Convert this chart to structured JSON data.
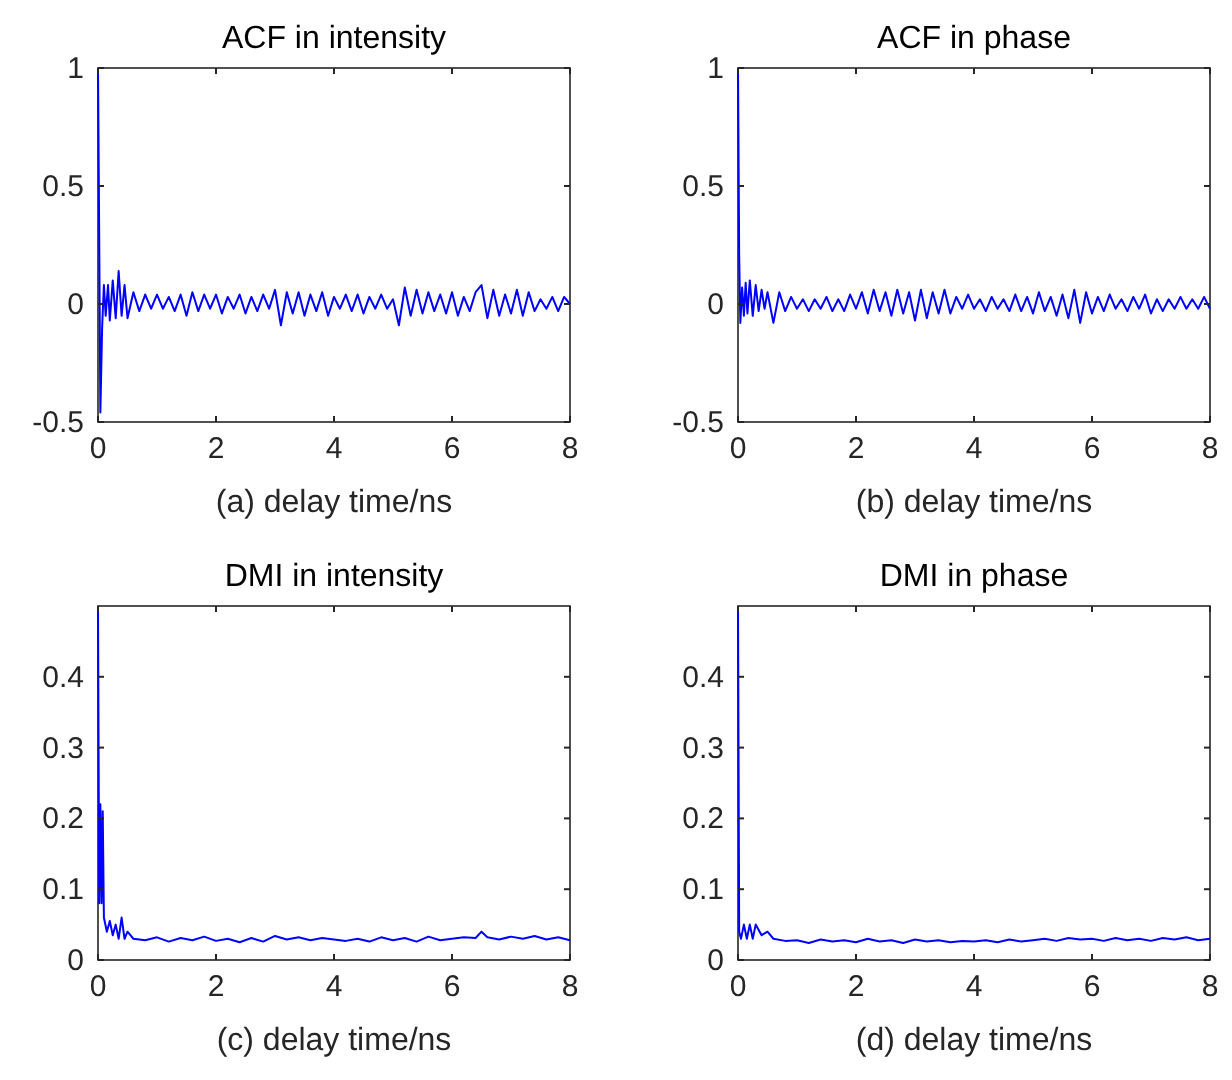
{
  "chart_data": [
    {
      "type": "line",
      "title": "ACF in intensity",
      "xlabel": "(a) delay time/ns",
      "xlim": [
        0,
        8
      ],
      "xticks": [
        0,
        2,
        4,
        6,
        8
      ],
      "ylim": [
        -0.5,
        1
      ],
      "yticks": [
        -0.5,
        0,
        0.5,
        1
      ],
      "grid": false,
      "series": [
        {
          "color": "#0000ff",
          "x": [
            0,
            0.02,
            0.04,
            0.07,
            0.1,
            0.13,
            0.17,
            0.2,
            0.25,
            0.3,
            0.35,
            0.4,
            0.45,
            0.5,
            0.6,
            0.7,
            0.8,
            0.9,
            1.0,
            1.1,
            1.2,
            1.3,
            1.4,
            1.5,
            1.6,
            1.7,
            1.8,
            1.9,
            2.0,
            2.1,
            2.2,
            2.3,
            2.4,
            2.5,
            2.6,
            2.7,
            2.8,
            2.9,
            3.0,
            3.1,
            3.2,
            3.3,
            3.4,
            3.5,
            3.6,
            3.7,
            3.8,
            3.9,
            4.0,
            4.1,
            4.2,
            4.3,
            4.4,
            4.5,
            4.6,
            4.7,
            4.8,
            4.9,
            5.0,
            5.1,
            5.2,
            5.3,
            5.4,
            5.5,
            5.6,
            5.7,
            5.8,
            5.9,
            6.0,
            6.1,
            6.2,
            6.3,
            6.4,
            6.5,
            6.6,
            6.7,
            6.8,
            6.9,
            7.0,
            7.1,
            7.2,
            7.3,
            7.4,
            7.5,
            7.6,
            7.7,
            7.8,
            7.9,
            8.0
          ],
          "values": [
            1,
            0.3,
            -0.46,
            -0.1,
            0.08,
            -0.05,
            0.08,
            -0.07,
            0.1,
            -0.06,
            0.14,
            -0.05,
            0.08,
            -0.06,
            0.05,
            -0.03,
            0.04,
            -0.02,
            0.04,
            -0.02,
            0.03,
            -0.03,
            0.04,
            -0.05,
            0.05,
            -0.03,
            0.04,
            -0.02,
            0.04,
            -0.04,
            0.03,
            -0.02,
            0.04,
            -0.04,
            0.03,
            -0.03,
            0.04,
            -0.02,
            0.06,
            -0.09,
            0.05,
            -0.04,
            0.05,
            -0.05,
            0.04,
            -0.03,
            0.05,
            -0.05,
            0.03,
            -0.02,
            0.04,
            -0.03,
            0.04,
            -0.04,
            0.03,
            -0.02,
            0.04,
            -0.02,
            0.02,
            -0.09,
            0.07,
            -0.05,
            0.06,
            -0.04,
            0.05,
            -0.03,
            0.04,
            -0.04,
            0.05,
            -0.05,
            0.03,
            -0.03,
            0.05,
            0.08,
            -0.06,
            0.06,
            -0.05,
            0.04,
            -0.04,
            0.06,
            -0.05,
            0.05,
            -0.03,
            0.02,
            -0.02,
            0.03,
            -0.03,
            0.03,
            0
          ]
        }
      ]
    },
    {
      "type": "line",
      "title": "ACF in phase",
      "xlabel": "(b) delay time/ns",
      "xlim": [
        0,
        8
      ],
      "xticks": [
        0,
        2,
        4,
        6,
        8
      ],
      "ylim": [
        -0.5,
        1
      ],
      "yticks": [
        -0.5,
        0,
        0.5,
        1
      ],
      "grid": false,
      "series": [
        {
          "color": "#0000ff",
          "x": [
            0,
            0.02,
            0.04,
            0.07,
            0.1,
            0.13,
            0.16,
            0.2,
            0.25,
            0.3,
            0.35,
            0.4,
            0.45,
            0.5,
            0.6,
            0.7,
            0.8,
            0.9,
            1.0,
            1.1,
            1.2,
            1.3,
            1.4,
            1.5,
            1.6,
            1.7,
            1.8,
            1.9,
            2.0,
            2.1,
            2.2,
            2.3,
            2.4,
            2.5,
            2.6,
            2.7,
            2.8,
            2.9,
            3.0,
            3.1,
            3.2,
            3.3,
            3.4,
            3.5,
            3.6,
            3.7,
            3.8,
            3.9,
            4.0,
            4.1,
            4.2,
            4.3,
            4.4,
            4.5,
            4.6,
            4.7,
            4.8,
            4.9,
            5.0,
            5.1,
            5.2,
            5.3,
            5.4,
            5.5,
            5.6,
            5.7,
            5.8,
            5.9,
            6.0,
            6.1,
            6.2,
            6.3,
            6.4,
            6.5,
            6.6,
            6.7,
            6.8,
            6.9,
            7.0,
            7.1,
            7.2,
            7.3,
            7.4,
            7.5,
            7.6,
            7.7,
            7.8,
            7.9,
            8.0
          ],
          "values": [
            1,
            0.2,
            -0.08,
            0.07,
            -0.05,
            0.09,
            -0.04,
            0.1,
            -0.05,
            0.08,
            -0.03,
            0.06,
            -0.02,
            0.05,
            -0.08,
            0.05,
            -0.03,
            0.03,
            -0.02,
            0.02,
            -0.03,
            0.02,
            -0.02,
            0.03,
            -0.03,
            0.02,
            -0.03,
            0.04,
            -0.02,
            0.05,
            -0.04,
            0.06,
            -0.03,
            0.05,
            -0.05,
            0.06,
            -0.04,
            0.05,
            -0.07,
            0.06,
            -0.06,
            0.05,
            -0.04,
            0.06,
            -0.04,
            0.03,
            -0.02,
            0.04,
            -0.02,
            0.02,
            -0.03,
            0.03,
            -0.02,
            0.02,
            -0.03,
            0.04,
            -0.03,
            0.03,
            -0.04,
            0.05,
            -0.03,
            0.03,
            -0.05,
            0.04,
            -0.06,
            0.06,
            -0.08,
            0.05,
            -0.04,
            0.03,
            -0.03,
            0.04,
            -0.02,
            0.02,
            -0.03,
            0.03,
            -0.02,
            0.04,
            -0.04,
            0.02,
            -0.03,
            0.02,
            -0.02,
            0.03,
            -0.02,
            0.02,
            -0.02,
            0.03,
            -0.02
          ]
        }
      ]
    },
    {
      "type": "line",
      "title": "DMI in intensity",
      "xlabel": "(c) delay time/ns",
      "xlim": [
        0,
        8
      ],
      "xticks": [
        0,
        2,
        4,
        6,
        8
      ],
      "ylim": [
        0,
        0.5
      ],
      "yticks": [
        0,
        0.1,
        0.2,
        0.3,
        0.4
      ],
      "grid": false,
      "series": [
        {
          "color": "#0000ff",
          "x": [
            0,
            0.02,
            0.04,
            0.06,
            0.08,
            0.1,
            0.15,
            0.2,
            0.25,
            0.3,
            0.35,
            0.4,
            0.45,
            0.5,
            0.6,
            0.8,
            1.0,
            1.2,
            1.4,
            1.6,
            1.8,
            2.0,
            2.2,
            2.4,
            2.6,
            2.8,
            3.0,
            3.2,
            3.4,
            3.6,
            3.8,
            4.0,
            4.2,
            4.4,
            4.6,
            4.8,
            5.0,
            5.2,
            5.4,
            5.6,
            5.8,
            6.0,
            6.2,
            6.4,
            6.5,
            6.6,
            6.8,
            7.0,
            7.2,
            7.4,
            7.6,
            7.8,
            8.0
          ],
          "values": [
            0.5,
            0.08,
            0.22,
            0.08,
            0.21,
            0.06,
            0.04,
            0.055,
            0.035,
            0.05,
            0.03,
            0.06,
            0.03,
            0.04,
            0.03,
            0.028,
            0.032,
            0.026,
            0.031,
            0.028,
            0.033,
            0.027,
            0.03,
            0.025,
            0.031,
            0.026,
            0.034,
            0.029,
            0.032,
            0.028,
            0.031,
            0.029,
            0.027,
            0.03,
            0.026,
            0.032,
            0.028,
            0.031,
            0.026,
            0.033,
            0.028,
            0.03,
            0.032,
            0.031,
            0.04,
            0.032,
            0.029,
            0.033,
            0.03,
            0.034,
            0.029,
            0.032,
            0.028
          ]
        }
      ]
    },
    {
      "type": "line",
      "title": "DMI in phase",
      "xlabel": "(d) delay time/ns",
      "xlim": [
        0,
        8
      ],
      "xticks": [
        0,
        2,
        4,
        6,
        8
      ],
      "ylim": [
        0,
        0.5
      ],
      "yticks": [
        0,
        0.1,
        0.2,
        0.3,
        0.4
      ],
      "grid": false,
      "series": [
        {
          "color": "#0000ff",
          "x": [
            0,
            0.02,
            0.05,
            0.1,
            0.15,
            0.2,
            0.25,
            0.3,
            0.4,
            0.5,
            0.6,
            0.8,
            1.0,
            1.2,
            1.4,
            1.6,
            1.8,
            2.0,
            2.2,
            2.4,
            2.6,
            2.8,
            3.0,
            3.2,
            3.4,
            3.6,
            3.8,
            4.0,
            4.2,
            4.4,
            4.6,
            4.8,
            5.0,
            5.2,
            5.4,
            5.6,
            5.8,
            6.0,
            6.2,
            6.4,
            6.6,
            6.8,
            7.0,
            7.2,
            7.4,
            7.6,
            7.8,
            8.0
          ],
          "values": [
            0.5,
            0.04,
            0.03,
            0.05,
            0.03,
            0.05,
            0.03,
            0.05,
            0.035,
            0.04,
            0.03,
            0.027,
            0.028,
            0.024,
            0.029,
            0.026,
            0.028,
            0.025,
            0.03,
            0.026,
            0.028,
            0.024,
            0.029,
            0.026,
            0.028,
            0.025,
            0.027,
            0.026,
            0.028,
            0.025,
            0.029,
            0.026,
            0.028,
            0.03,
            0.027,
            0.031,
            0.029,
            0.03,
            0.027,
            0.031,
            0.028,
            0.03,
            0.027,
            0.031,
            0.029,
            0.032,
            0.028,
            0.03
          ]
        }
      ]
    }
  ]
}
